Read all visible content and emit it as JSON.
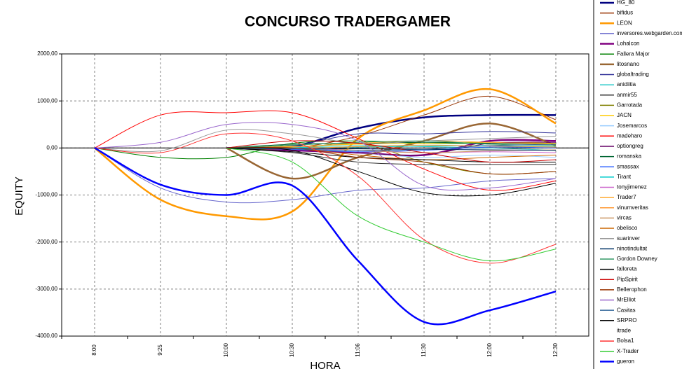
{
  "chart_data": {
    "type": "line",
    "title": "CONCURSO TRADERGAMER",
    "x_label": "HORA",
    "y_label": "EQUITY",
    "categories": [
      "8:00",
      "9:25",
      "10:00",
      "10:30",
      "11:06",
      "11:30",
      "12:00",
      "12:30"
    ],
    "ylim": [
      -4000,
      2000
    ],
    "yticks": [
      {
        "value": -4000,
        "label": "-4000,00"
      },
      {
        "value": -3000,
        "label": "-3000,00"
      },
      {
        "value": -2000,
        "label": "-2000,00"
      },
      {
        "value": -1000,
        "label": "-1000,00"
      },
      {
        "value": 0,
        "label": "0,00"
      },
      {
        "value": 1000,
        "label": "1000,00"
      },
      {
        "value": 2000,
        "label": "2000,00"
      }
    ],
    "grid": true,
    "legend": "right",
    "series": [
      {
        "name": "HG_80",
        "color": "#000080",
        "width": 2.5,
        "values": [
          null,
          null,
          0,
          30,
          420,
          650,
          700,
          700
        ]
      },
      {
        "name": "bifidus",
        "color": "#993300",
        "values": [
          null,
          null,
          0,
          0,
          250,
          700,
          1100,
          600
        ]
      },
      {
        "name": "LEON",
        "color": "#ff9900",
        "width": 2.5,
        "values": [
          0,
          -1100,
          -1450,
          -1350,
          200,
          800,
          1250,
          520
        ]
      },
      {
        "name": "inversores.webgarden.com",
        "color": "#6666cc",
        "values": [
          0,
          -850,
          -1150,
          -1100,
          -900,
          -850,
          -700,
          -650
        ]
      },
      {
        "name": "Lohalcon",
        "color": "#800080",
        "width": 2.5,
        "values": [
          null,
          null,
          0,
          -50,
          -100,
          -150,
          150,
          150
        ]
      },
      {
        "name": "Fallera Major",
        "color": "#008000",
        "values": [
          0,
          -200,
          -200,
          100,
          150,
          100,
          100,
          100
        ]
      },
      {
        "name": "litosnano",
        "color": "#996633",
        "width": 2.5,
        "values": [
          null,
          null,
          0,
          -650,
          -200,
          150,
          520,
          50
        ]
      },
      {
        "name": "globaltrading",
        "color": "#333399",
        "values": [
          null,
          null,
          0,
          50,
          300,
          300,
          350,
          320
        ]
      },
      {
        "name": "anidiitia",
        "color": "#33cccc",
        "values": [
          null,
          null,
          0,
          20,
          50,
          30,
          0,
          -50
        ]
      },
      {
        "name": "anmir55",
        "color": "#333333",
        "values": [
          null,
          null,
          0,
          -100,
          -300,
          -350,
          -350,
          -350
        ]
      },
      {
        "name": "Garrotada",
        "color": "#808000",
        "values": [
          null,
          null,
          0,
          -20,
          100,
          -300,
          -550,
          -500
        ]
      },
      {
        "name": "JACN",
        "color": "#ffcc00",
        "values": [
          null,
          null,
          0,
          30,
          80,
          100,
          120,
          100
        ]
      },
      {
        "name": "Josemarcos",
        "color": "#99ccff",
        "values": [
          null,
          null,
          0,
          0,
          -100,
          -200,
          -150,
          -200
        ]
      },
      {
        "name": "madeharo",
        "color": "#ff0000",
        "values": [
          0,
          700,
          750,
          750,
          200,
          -450,
          -900,
          -700
        ]
      },
      {
        "name": "optiongreg",
        "color": "#660066",
        "values": [
          null,
          null,
          0,
          -20,
          -100,
          -150,
          100,
          120
        ]
      },
      {
        "name": "romanska",
        "color": "#006633",
        "values": [
          null,
          null,
          0,
          80,
          100,
          120,
          100,
          80
        ]
      },
      {
        "name": "smassax",
        "color": "#3366ff",
        "values": [
          null,
          null,
          0,
          -30,
          -80,
          -50,
          20,
          0
        ]
      },
      {
        "name": "Tirant",
        "color": "#00cccc",
        "values": [
          null,
          null,
          0,
          10,
          20,
          40,
          50,
          30
        ]
      },
      {
        "name": "tonyjimenez",
        "color": "#cc66cc",
        "values": [
          null,
          null,
          0,
          0,
          -50,
          -100,
          -80,
          -100
        ]
      },
      {
        "name": "Trader7",
        "color": "#ffaa33",
        "values": [
          null,
          null,
          0,
          20,
          100,
          150,
          120,
          80
        ]
      },
      {
        "name": "vinumveritas",
        "color": "#ff9933",
        "values": [
          null,
          null,
          0,
          -10,
          30,
          60,
          40,
          20
        ]
      },
      {
        "name": "vircas",
        "color": "#cc9966",
        "values": [
          null,
          null,
          0,
          40,
          -50,
          -100,
          -60,
          -40
        ]
      },
      {
        "name": "obelisco",
        "color": "#cc6600",
        "values": [
          null,
          null,
          0,
          0,
          -150,
          -250,
          -200,
          -150
        ]
      },
      {
        "name": "suarinver",
        "color": "#999999",
        "values": [
          0,
          -60,
          380,
          300,
          100,
          150,
          200,
          250
        ]
      },
      {
        "name": "ninotindultat",
        "color": "#003366",
        "values": [
          null,
          null,
          0,
          -10,
          -20,
          -30,
          -40,
          -50
        ]
      },
      {
        "name": "Gordon Downey",
        "color": "#339966",
        "values": [
          null,
          null,
          0,
          60,
          120,
          150,
          80,
          60
        ]
      },
      {
        "name": "falloreta",
        "color": "#000000",
        "values": [
          null,
          null,
          0,
          -80,
          -200,
          -250,
          -300,
          -300
        ]
      },
      {
        "name": "PipSpirit",
        "color": "#cc0000",
        "values": [
          null,
          null,
          0,
          150,
          100,
          -100,
          -300,
          -250
        ]
      },
      {
        "name": "Bellerophon",
        "color": "#993300",
        "values": [
          null,
          null,
          0,
          0,
          -200,
          -300,
          -550,
          -500
        ]
      },
      {
        "name": "MrElliot",
        "color": "#9966cc",
        "values": [
          0,
          120,
          500,
          500,
          150,
          -800,
          -850,
          -650
        ]
      },
      {
        "name": "Casitas",
        "color": "#336699",
        "values": [
          null,
          null,
          0,
          -20,
          -50,
          -30,
          50,
          80
        ]
      },
      {
        "name": "SRPRO",
        "color": "#000000",
        "values": [
          null,
          null,
          0,
          -50,
          -500,
          -950,
          -1000,
          -750
        ]
      },
      {
        "name": "itrade",
        "values": [
          null,
          null,
          null,
          null,
          null,
          null,
          null,
          null
        ]
      },
      {
        "name": "Bolsa1",
        "color": "#ff3333",
        "values": [
          0,
          -100,
          300,
          150,
          -600,
          -1950,
          -2450,
          -2050
        ]
      },
      {
        "name": "X-Trader",
        "color": "#33cc33",
        "values": [
          null,
          null,
          0,
          -300,
          -1450,
          -2000,
          -2400,
          -2150
        ]
      },
      {
        "name": "gueron",
        "color": "#0000ff",
        "width": 2.5,
        "values": [
          0,
          -780,
          -1000,
          -800,
          -2400,
          -3700,
          -3450,
          -3050
        ]
      }
    ]
  }
}
